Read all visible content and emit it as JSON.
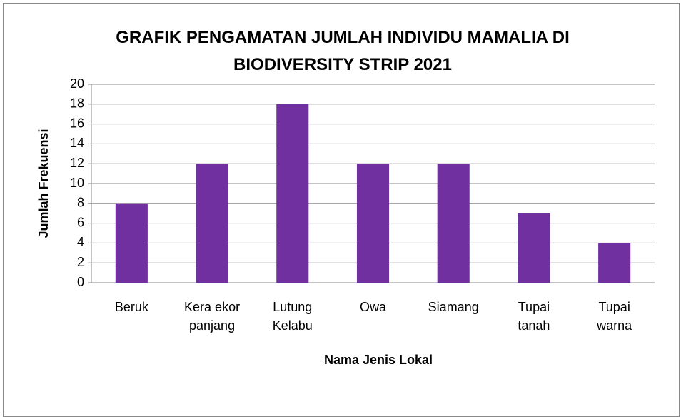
{
  "chart_data": {
    "type": "bar",
    "title": "GRAFIK PENGAMATAN JUMLAH INDIVIDU MAMALIA DI BIODIVERSITY STRIP 2021",
    "x_label": "Nama Jenis Lokal",
    "y_label": "Jumlah Frekuensi",
    "categories": [
      "Beruk",
      "Kera ekor panjang",
      "Lutung Kelabu",
      "Owa",
      "Siamang",
      "Tupai tanah",
      "Tupai warna"
    ],
    "values": [
      8,
      12,
      18,
      12,
      12,
      7,
      4
    ],
    "color": "#7030a0",
    "ylim": [
      0,
      20
    ],
    "yticks": [
      0,
      2,
      4,
      6,
      8,
      10,
      12,
      14,
      16,
      18,
      20
    ],
    "grid": true
  }
}
